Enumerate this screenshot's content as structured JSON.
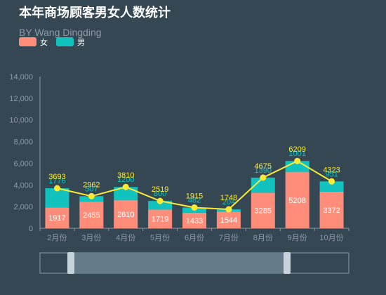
{
  "chart_data": {
    "type": "bar",
    "title": "本年商场顾客男女人数统计",
    "subtitle": "BY Wang Dingding",
    "categories": [
      "2月份",
      "3月份",
      "4月份",
      "5月份",
      "6月份",
      "7月份",
      "8月份",
      "9月份",
      "10月份"
    ],
    "series": [
      {
        "name": "女",
        "type": "bar",
        "stack": true,
        "color": "#ff8d7a",
        "values": [
          1917,
          2455,
          2610,
          1719,
          1433,
          1544,
          3285,
          5208,
          3372
        ]
      },
      {
        "name": "男",
        "type": "bar",
        "stack": true,
        "color": "#11c2be",
        "values": [
          1776,
          507,
          1200,
          800,
          482,
          204,
          1390,
          1001,
          951
        ]
      },
      {
        "name": "",
        "type": "line",
        "color": "#fcea34",
        "values": [
          3693,
          2962,
          3810,
          2519,
          1915,
          1748,
          4675,
          6209,
          4323
        ]
      }
    ],
    "yticks": [
      "0",
      "2,000",
      "4,000",
      "6,000",
      "8,000",
      "10,000",
      "12,000",
      "14,000"
    ],
    "ylim": [
      0,
      14000
    ],
    "grid": false,
    "legend": "top-left",
    "data_zoom": {
      "start": 0.1,
      "end": 0.8
    }
  }
}
